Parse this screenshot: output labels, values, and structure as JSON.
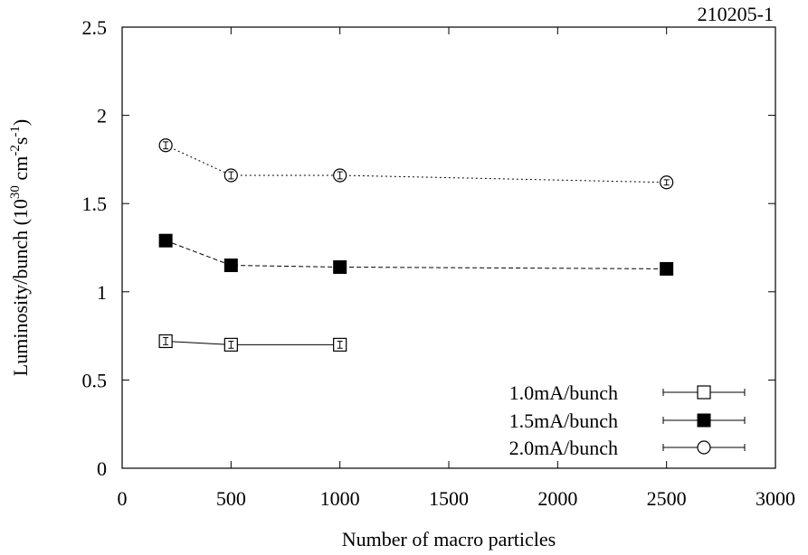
{
  "chart_data": {
    "type": "line",
    "code_label": "210205-1",
    "xlabel": "Number of macro particles",
    "ylabel": {
      "main": "Luminosity/bunch (10",
      "exp1": "30",
      "mid": " cm",
      "exp2": "-2",
      "mid2": "s",
      "exp3": "-1",
      "end": ")"
    },
    "xlim": [
      0,
      3000
    ],
    "ylim": [
      0,
      2.5
    ],
    "xticks": [
      "0",
      "500",
      "1000",
      "1500",
      "2000",
      "2500",
      "3000"
    ],
    "xtick_values": [
      0,
      500,
      1000,
      1500,
      2000,
      2500,
      3000
    ],
    "yticks": [
      "0",
      "0.5",
      "1",
      "1.5",
      "2",
      "2.5"
    ],
    "ytick_values": [
      0,
      0.5,
      1,
      1.5,
      2,
      2.5
    ],
    "grid": false,
    "legend_position": "bottom-right",
    "series": [
      {
        "name": "1.0mA/bunch",
        "marker": "open-square",
        "line": "solid",
        "x": [
          200,
          500,
          1000
        ],
        "y": [
          0.72,
          0.7,
          0.7
        ],
        "err": [
          0.02,
          0.02,
          0.02
        ]
      },
      {
        "name": "1.5mA/bunch",
        "marker": "filled-square",
        "line": "dashed",
        "x": [
          200,
          500,
          1000,
          2500
        ],
        "y": [
          1.29,
          1.15,
          1.14,
          1.13
        ],
        "err": [
          0.02,
          0.015,
          0.015,
          0.01
        ]
      },
      {
        "name": "2.0mA/bunch",
        "marker": "open-circle",
        "line": "dotted",
        "x": [
          200,
          500,
          1000,
          2500
        ],
        "y": [
          1.83,
          1.66,
          1.66,
          1.62
        ],
        "err": [
          0.02,
          0.02,
          0.02,
          0.015
        ]
      }
    ]
  }
}
